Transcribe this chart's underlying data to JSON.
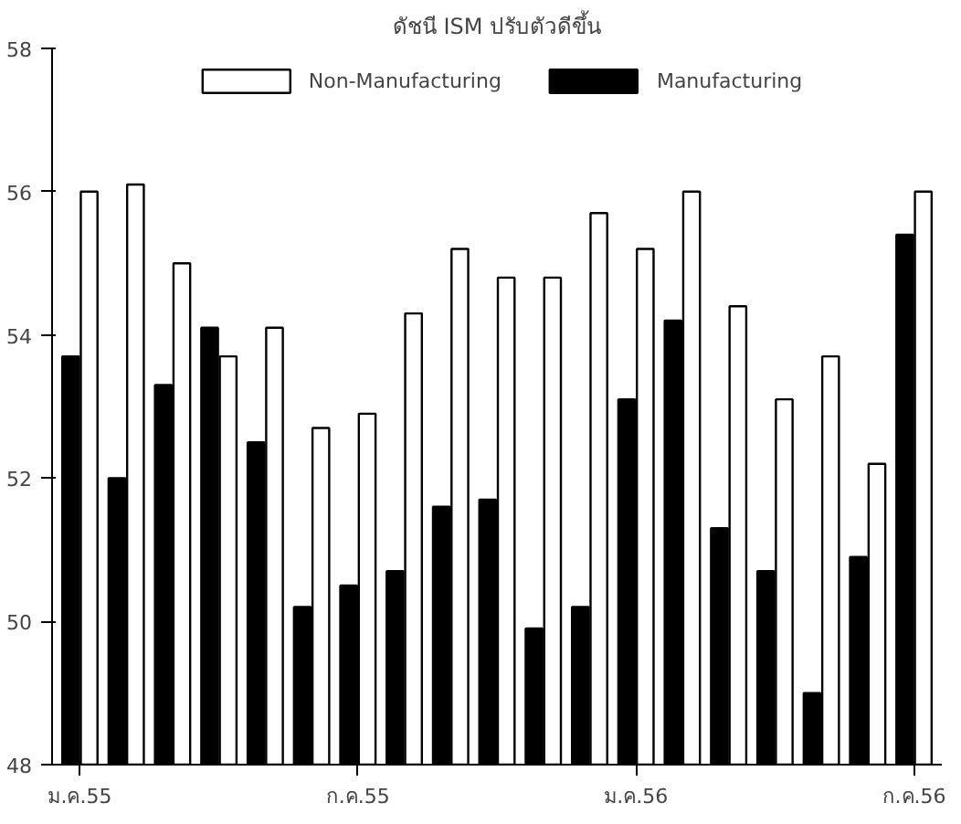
{
  "chart_data": {
    "type": "bar",
    "title": "ดัชนี ISM ปรับตัวดีขึ้น",
    "categories": [
      "ม.ค.55",
      null,
      null,
      null,
      null,
      null,
      "ก.ค.55",
      null,
      null,
      null,
      null,
      null,
      "ม.ค.56",
      null,
      null,
      null,
      null,
      null,
      "ก.ค.56"
    ],
    "series": [
      {
        "name": "Manufacturing",
        "color": "#000000",
        "values": [
          53.7,
          52.0,
          53.3,
          54.1,
          52.5,
          50.2,
          50.5,
          50.7,
          51.6,
          51.7,
          49.9,
          50.2,
          53.1,
          54.2,
          51.3,
          50.7,
          49.0,
          50.9,
          55.4
        ]
      },
      {
        "name": "Non-Manufacturing",
        "color": "#ffffff",
        "values": [
          56.0,
          56.1,
          55.0,
          53.7,
          54.1,
          52.7,
          52.9,
          54.3,
          55.2,
          54.8,
          54.8,
          55.7,
          55.2,
          56.0,
          54.4,
          53.1,
          53.7,
          52.2,
          56.0
        ]
      }
    ],
    "ylim": [
      48,
      58
    ],
    "yticks": [
      48,
      50,
      52,
      54,
      56,
      58
    ],
    "grid": false,
    "legend": "top"
  }
}
